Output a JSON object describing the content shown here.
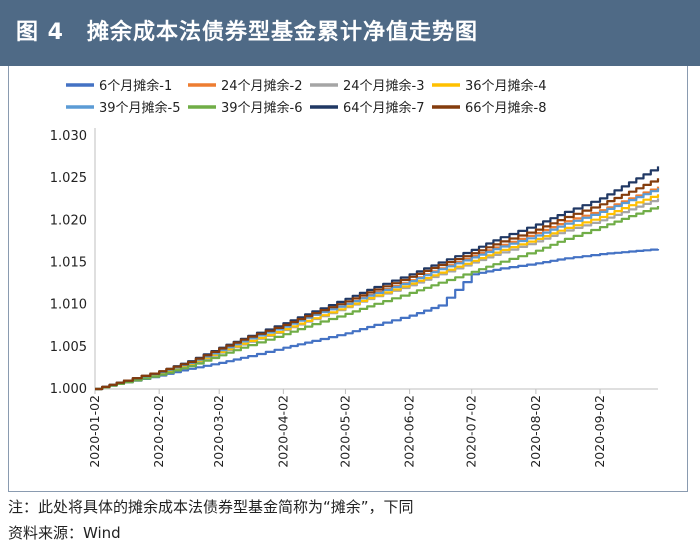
{
  "header": {
    "title": "图 4　摊余成本法债券型基金累计净值走势图"
  },
  "colors": {
    "header_bg": "#4f6a86"
  },
  "notes": {
    "line1": "注：此处将具体的摊余成本法债券型基金简称为“摊余”，下同",
    "line2": "资料来源：Wind"
  },
  "chart_data": {
    "type": "line",
    "title": "",
    "xlabel": "",
    "ylabel": "",
    "ylim": [
      1.0,
      1.03
    ],
    "y_ticks": [
      "1.000",
      "1.005",
      "1.010",
      "1.015",
      "1.020",
      "1.025",
      "1.030"
    ],
    "x_ticks": [
      "2020-01-02",
      "2020-02-02",
      "2020-03-02",
      "2020-04-02",
      "2020-05-02",
      "2020-06-02",
      "2020-07-02",
      "2020-08-02",
      "2020-09-02"
    ],
    "grid": false,
    "legend": "top",
    "x": [
      "2020-01-02",
      "2020-01-16",
      "2020-02-02",
      "2020-02-16",
      "2020-03-02",
      "2020-03-16",
      "2020-04-02",
      "2020-04-16",
      "2020-05-02",
      "2020-05-16",
      "2020-06-02",
      "2020-06-16",
      "2020-07-02",
      "2020-07-16",
      "2020-08-02",
      "2020-08-16",
      "2020-09-02",
      "2020-09-16",
      "2020-09-30"
    ],
    "series": [
      {
        "name": "6个月摊余-1",
        "color": "#4472c4",
        "values": [
          1.0,
          1.0008,
          1.0016,
          1.0024,
          1.0031,
          1.0039,
          1.0049,
          1.0057,
          1.0066,
          1.0076,
          1.0087,
          1.0099,
          1.0136,
          1.0143,
          1.0149,
          1.0155,
          1.016,
          1.0163,
          1.0166
        ]
      },
      {
        "name": "24个月摊余-2",
        "color": "#ed7d31",
        "values": [
          1.0,
          1.001,
          1.0021,
          1.0032,
          1.0047,
          1.006,
          1.0075,
          1.0088,
          1.0101,
          1.0115,
          1.0129,
          1.0143,
          1.0158,
          1.0171,
          1.0185,
          1.0199,
          1.0212,
          1.0226,
          1.024
        ]
      },
      {
        "name": "24个月摊余-3",
        "color": "#a5a5a5",
        "values": [
          1.0,
          1.0009,
          1.0019,
          1.0029,
          1.0043,
          1.0056,
          1.007,
          1.0083,
          1.0097,
          1.011,
          1.0123,
          1.0136,
          1.015,
          1.0162,
          1.0175,
          1.0188,
          1.02,
          1.0213,
          1.0226
        ]
      },
      {
        "name": "36个月摊余-4",
        "color": "#ffc000",
        "values": [
          1.0,
          1.0009,
          1.0019,
          1.003,
          1.0044,
          1.0057,
          1.0071,
          1.0084,
          1.0098,
          1.0111,
          1.0125,
          1.0138,
          1.0152,
          1.0165,
          1.0178,
          1.0191,
          1.0204,
          1.0218,
          1.0231
        ]
      },
      {
        "name": "39个月摊余-5",
        "color": "#5b9bd5",
        "values": [
          1.0,
          1.001,
          1.002,
          1.0031,
          1.0046,
          1.006,
          1.0074,
          1.0088,
          1.0101,
          1.0114,
          1.0128,
          1.0142,
          1.0156,
          1.0169,
          1.0182,
          1.0196,
          1.021,
          1.0224,
          1.0238
        ]
      },
      {
        "name": "39个月摊余-6",
        "color": "#70ad47",
        "values": [
          1.0,
          1.0008,
          1.0017,
          1.0027,
          1.004,
          1.0052,
          1.0065,
          1.0077,
          1.0089,
          1.0101,
          1.0114,
          1.0126,
          1.0139,
          1.0151,
          1.0164,
          1.0178,
          1.0192,
          1.0205,
          1.0217
        ]
      },
      {
        "name": "64个月摊余-7",
        "color": "#203864",
        "values": [
          1.0,
          1.001,
          1.0021,
          1.0033,
          1.0049,
          1.0063,
          1.0078,
          1.0092,
          1.0107,
          1.0121,
          1.0136,
          1.015,
          1.0165,
          1.018,
          1.0195,
          1.021,
          1.0226,
          1.0245,
          1.0264
        ]
      },
      {
        "name": "66个月摊余-8",
        "color": "#843c0c",
        "values": [
          1.0,
          1.001,
          1.0021,
          1.0032,
          1.0048,
          1.0062,
          1.0076,
          1.009,
          1.0104,
          1.0118,
          1.0133,
          1.0147,
          1.0161,
          1.0175,
          1.0189,
          1.0204,
          1.0219,
          1.0234,
          1.025
        ]
      }
    ]
  }
}
